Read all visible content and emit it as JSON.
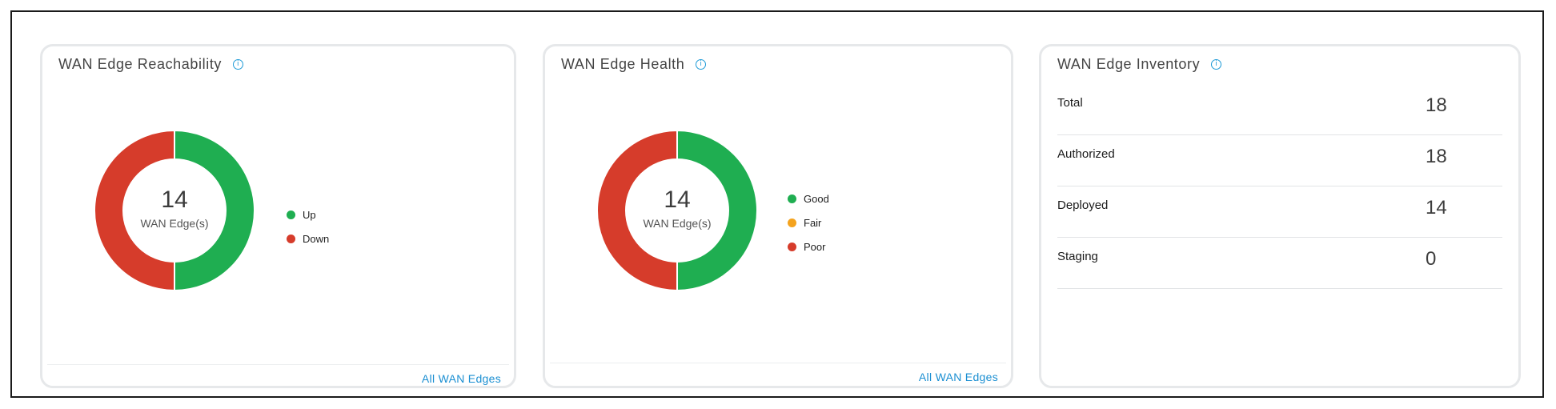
{
  "colors": {
    "up": "#1fae51",
    "down": "#d63c2b",
    "good": "#1fae51",
    "fair": "#f4a31e",
    "poor": "#d63c2b",
    "link": "#1b8fd2",
    "info": "#1f9bd7"
  },
  "reachability": {
    "title": "WAN Edge Reachability",
    "info_icon": "info-icon",
    "center_count": "14",
    "center_label": "WAN Edge(s)",
    "legend": [
      {
        "label": "Up",
        "color": "#1fae51"
      },
      {
        "label": "Down",
        "color": "#d63c2b"
      }
    ],
    "link": "All WAN Edges"
  },
  "health": {
    "title": "WAN Edge Health",
    "info_icon": "info-icon",
    "center_count": "14",
    "center_label": "WAN Edge(s)",
    "legend": [
      {
        "label": "Good",
        "color": "#1fae51"
      },
      {
        "label": "Fair",
        "color": "#f4a31e"
      },
      {
        "label": "Poor",
        "color": "#d63c2b"
      }
    ],
    "link": "All WAN Edges"
  },
  "inventory": {
    "title": "WAN Edge Inventory",
    "info_icon": "info-icon",
    "rows": [
      {
        "label": "Total",
        "value": "18"
      },
      {
        "label": "Authorized",
        "value": "18"
      },
      {
        "label": "Deployed",
        "value": "14"
      },
      {
        "label": "Staging",
        "value": "0"
      }
    ]
  },
  "chart_data": [
    {
      "type": "pie",
      "categories": [
        "Up",
        "Down"
      ],
      "values": [
        7,
        7
      ],
      "colors": [
        "#1fae51",
        "#d63c2b"
      ]
    },
    {
      "type": "pie",
      "categories": [
        "Good",
        "Fair",
        "Poor"
      ],
      "values": [
        7,
        0,
        7
      ],
      "colors": [
        "#1fae51",
        "#f4a31e",
        "#d63c2b"
      ]
    }
  ]
}
